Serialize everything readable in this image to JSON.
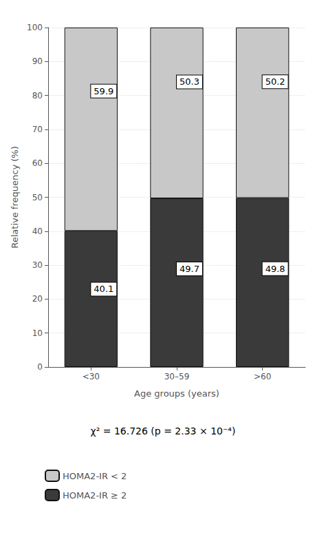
{
  "chart_data": {
    "type": "bar",
    "categories": [
      "<30",
      "30–59",
      ">60"
    ],
    "series": [
      {
        "name": "HOMA2-IR ≥ 2",
        "color": "#3a3a3a",
        "values": [
          40.1,
          49.7,
          49.8
        ]
      },
      {
        "name": "HOMA2-IR < 2",
        "color": "#c8c8c8",
        "values": [
          59.9,
          50.3,
          50.2
        ]
      }
    ],
    "stacked": true,
    "data_labels": true,
    "xlabel": "Age groups (years)",
    "ylabel": "Relative frequency (%)",
    "ylim": [
      0,
      100
    ],
    "yticks": [
      0,
      10,
      20,
      30,
      40,
      50,
      60,
      70,
      80,
      90,
      100
    ],
    "grid": true,
    "legend": "lower left",
    "annotation": "χ² = 16.726 (p = 2.33 × 10⁻⁴)"
  }
}
